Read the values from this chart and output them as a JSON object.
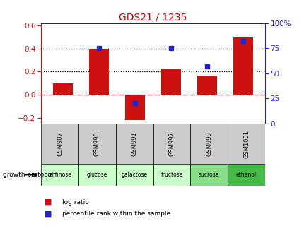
{
  "title": "GDS21 / 1235",
  "samples": [
    "GSM907",
    "GSM990",
    "GSM991",
    "GSM997",
    "GSM999",
    "GSM1001"
  ],
  "protocols": [
    "raffinose",
    "glucose",
    "galactose",
    "fructose",
    "sucrose",
    "ethanol"
  ],
  "protocol_colors": [
    "#ccffcc",
    "#ccffcc",
    "#ccffcc",
    "#ccffcc",
    "#88dd88",
    "#44bb44"
  ],
  "log_ratios": [
    0.1,
    0.4,
    -0.22,
    0.225,
    0.165,
    0.495
  ],
  "percentile_ranks": [
    null,
    75,
    20,
    75,
    57,
    82
  ],
  "bar_color": "#cc1111",
  "dot_color": "#2222cc",
  "ylim_left": [
    -0.25,
    0.62
  ],
  "ylim_right": [
    0,
    100
  ],
  "yticks_left": [
    -0.2,
    0.0,
    0.2,
    0.4,
    0.6
  ],
  "yticks_right": [
    0,
    25,
    50,
    75,
    100
  ],
  "hline_y": [
    0.2,
    0.4
  ],
  "zero_line_color": "#cc2222",
  "bar_width": 0.55,
  "background_color": "#ffffff",
  "legend_log_ratio": "log ratio",
  "legend_percentile": "percentile rank within the sample",
  "gsm_bg_color": "#cccccc",
  "title_color": "#cc0000"
}
